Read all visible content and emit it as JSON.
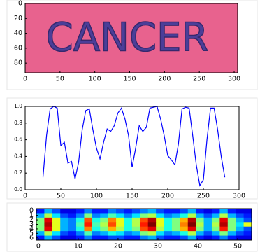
{
  "chart_data": [
    {
      "type": "image",
      "text": "CANCER",
      "background": "#e8628e",
      "color": "#3b3b9a",
      "xlim": [
        0,
        305
      ],
      "ylim": [
        0,
        93
      ],
      "xticks": [
        0,
        50,
        100,
        150,
        200,
        250,
        300
      ],
      "yticks": [
        0,
        20,
        40,
        60,
        80
      ]
    },
    {
      "type": "line",
      "color": "#0000ff",
      "x": [
        25,
        30,
        35,
        40,
        45,
        50,
        55,
        60,
        65,
        70,
        75,
        80,
        85,
        90,
        95,
        100,
        105,
        110,
        115,
        120,
        125,
        130,
        135,
        140,
        145,
        150,
        155,
        160,
        165,
        170,
        175,
        180,
        185,
        190,
        195,
        200,
        205,
        210,
        215,
        220,
        225,
        230,
        235,
        240,
        245,
        250,
        255,
        260,
        265,
        270,
        275,
        280
      ],
      "series": [
        {
          "name": null,
          "color": "#0000ff",
          "values": [
            0.15,
            0.65,
            0.97,
            1.0,
            0.98,
            0.53,
            0.57,
            0.32,
            0.34,
            0.13,
            0.33,
            0.72,
            0.95,
            0.97,
            0.72,
            0.5,
            0.37,
            0.57,
            0.73,
            0.7,
            0.77,
            0.92,
            0.98,
            0.85,
            0.65,
            0.27,
            0.5,
            0.77,
            0.7,
            0.75,
            0.98,
            0.99,
            1.0,
            0.85,
            0.65,
            0.41,
            0.36,
            0.3,
            0.55,
            0.97,
            0.99,
            0.98,
            0.65,
            0.3,
            0.05,
            0.12,
            0.6,
            0.98,
            0.98,
            0.72,
            0.4,
            0.15
          ]
        }
      ],
      "xlim": [
        0,
        300
      ],
      "ylim": [
        0,
        1
      ],
      "xticks": [
        0,
        50,
        100,
        150,
        200,
        250,
        300
      ],
      "yticks": [
        {
          "value": 0,
          "label": "0.0"
        },
        0.2,
        0.4,
        0.6,
        0.8,
        {
          "value": 1,
          "label": "1.0"
        }
      ]
    },
    {
      "type": "heatmap",
      "xlim": [
        -0.5,
        53.5
      ],
      "ylim": [
        -0.5,
        6.5
      ],
      "xticks": [
        0,
        10,
        20,
        30,
        40,
        50
      ],
      "yticks": [
        0,
        1,
        2,
        3,
        4,
        5,
        6
      ],
      "z": [
        [
          0.15,
          0.3,
          0.2,
          0.1,
          0.1,
          0.15,
          0.25,
          0.15,
          0.15,
          0.25,
          0.2,
          0.15,
          0.2,
          0.25,
          0.3,
          0.2,
          0.15,
          0.15,
          0.2,
          0.3,
          0.15,
          0.1,
          0.15,
          0.3,
          0.15,
          0.1,
          0.1
        ],
        [
          0.3,
          0.55,
          0.35,
          0.2,
          0.15,
          0.25,
          0.5,
          0.25,
          0.3,
          0.45,
          0.35,
          0.25,
          0.35,
          0.5,
          0.55,
          0.35,
          0.25,
          0.3,
          0.4,
          0.55,
          0.3,
          0.2,
          0.3,
          0.55,
          0.3,
          0.2,
          0.15
        ],
        [
          0.5,
          0.9,
          0.6,
          0.3,
          0.25,
          0.4,
          0.8,
          0.4,
          0.5,
          0.75,
          0.6,
          0.4,
          0.55,
          0.8,
          0.95,
          0.6,
          0.4,
          0.5,
          0.7,
          0.95,
          0.5,
          0.3,
          0.5,
          0.9,
          0.5,
          0.3,
          0.2
        ],
        [
          0.5,
          0.95,
          0.6,
          0.3,
          0.25,
          0.45,
          0.85,
          0.45,
          0.55,
          0.8,
          0.6,
          0.4,
          0.55,
          0.85,
          1.0,
          0.6,
          0.4,
          0.5,
          0.75,
          1.0,
          0.55,
          0.3,
          0.55,
          0.95,
          0.5,
          0.35,
          0.6
        ],
        [
          0.5,
          0.9,
          0.6,
          0.3,
          0.25,
          0.4,
          0.75,
          0.4,
          0.5,
          0.7,
          0.55,
          0.4,
          0.5,
          0.8,
          0.9,
          0.55,
          0.4,
          0.5,
          0.7,
          0.9,
          0.5,
          0.3,
          0.5,
          0.85,
          0.5,
          0.3,
          0.2
        ],
        [
          0.3,
          0.55,
          0.35,
          0.2,
          0.15,
          0.25,
          0.45,
          0.25,
          0.3,
          0.4,
          0.35,
          0.25,
          0.3,
          0.5,
          0.55,
          0.35,
          0.25,
          0.3,
          0.4,
          0.55,
          0.3,
          0.2,
          0.3,
          0.5,
          0.3,
          0.2,
          0.15
        ],
        [
          0.15,
          0.3,
          0.2,
          0.1,
          0.1,
          0.15,
          0.25,
          0.15,
          0.15,
          0.2,
          0.2,
          0.15,
          0.15,
          0.25,
          0.3,
          0.2,
          0.15,
          0.15,
          0.2,
          0.3,
          0.15,
          0.1,
          0.15,
          0.25,
          0.15,
          0.1,
          0.1
        ]
      ]
    }
  ]
}
